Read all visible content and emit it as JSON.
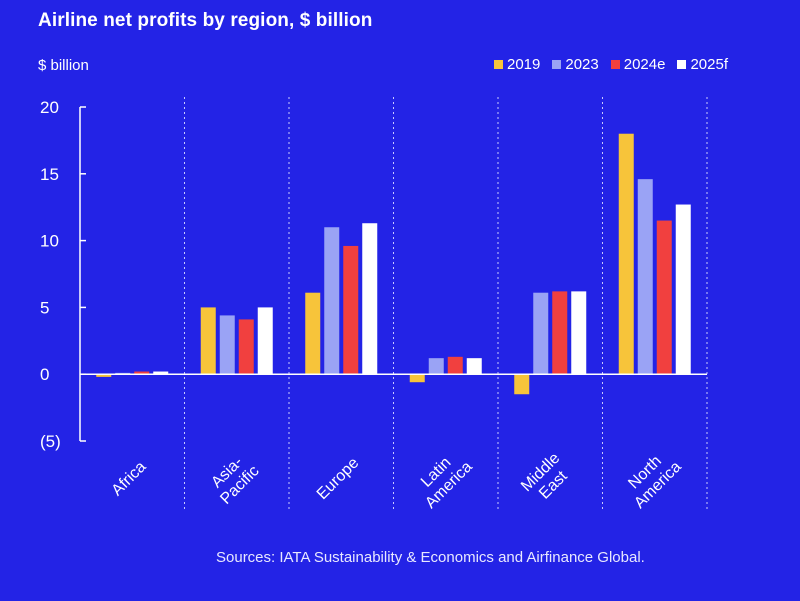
{
  "title": "Airline net profits by region, $ billion",
  "unit_label": "$ billion",
  "source": "Sources: IATA Sustainability & Economics and Airfinance Global.",
  "colors": {
    "background": "#2323e6",
    "2019": "#f7c43a",
    "2023": "#9aa3f5",
    "2024e": "#f1403f",
    "2025f": "#ffffff"
  },
  "chart_data": {
    "type": "bar",
    "title": "Airline net profits by region, $ billion",
    "ylabel": "$ billion",
    "xlabel": "",
    "ylim": [
      -5,
      20
    ],
    "yticks": [
      20,
      15,
      10,
      5,
      0,
      -5
    ],
    "ytick_labels": [
      "20",
      "15",
      "10",
      "5",
      "0",
      "(5)"
    ],
    "categories": [
      "Africa",
      "Asia-Pacific",
      "Europe",
      "Latin America",
      "Middle East",
      "North America"
    ],
    "category_label_lines": [
      [
        "Africa"
      ],
      [
        "Asia-",
        "Pacific"
      ],
      [
        "Europe"
      ],
      [
        "Latin",
        "America"
      ],
      [
        "Middle",
        "East"
      ],
      [
        "North",
        "America"
      ]
    ],
    "legend_position": "top-right",
    "series": [
      {
        "name": "2019",
        "values": [
          -0.2,
          5.0,
          6.1,
          -0.6,
          -1.5,
          18.0
        ]
      },
      {
        "name": "2023",
        "values": [
          0.1,
          4.4,
          11.0,
          1.2,
          6.1,
          14.6
        ]
      },
      {
        "name": "2024e",
        "values": [
          0.2,
          4.1,
          9.6,
          1.3,
          6.2,
          11.5
        ]
      },
      {
        "name": "2025f",
        "values": [
          0.2,
          5.0,
          11.3,
          1.2,
          6.2,
          12.7
        ]
      }
    ]
  }
}
